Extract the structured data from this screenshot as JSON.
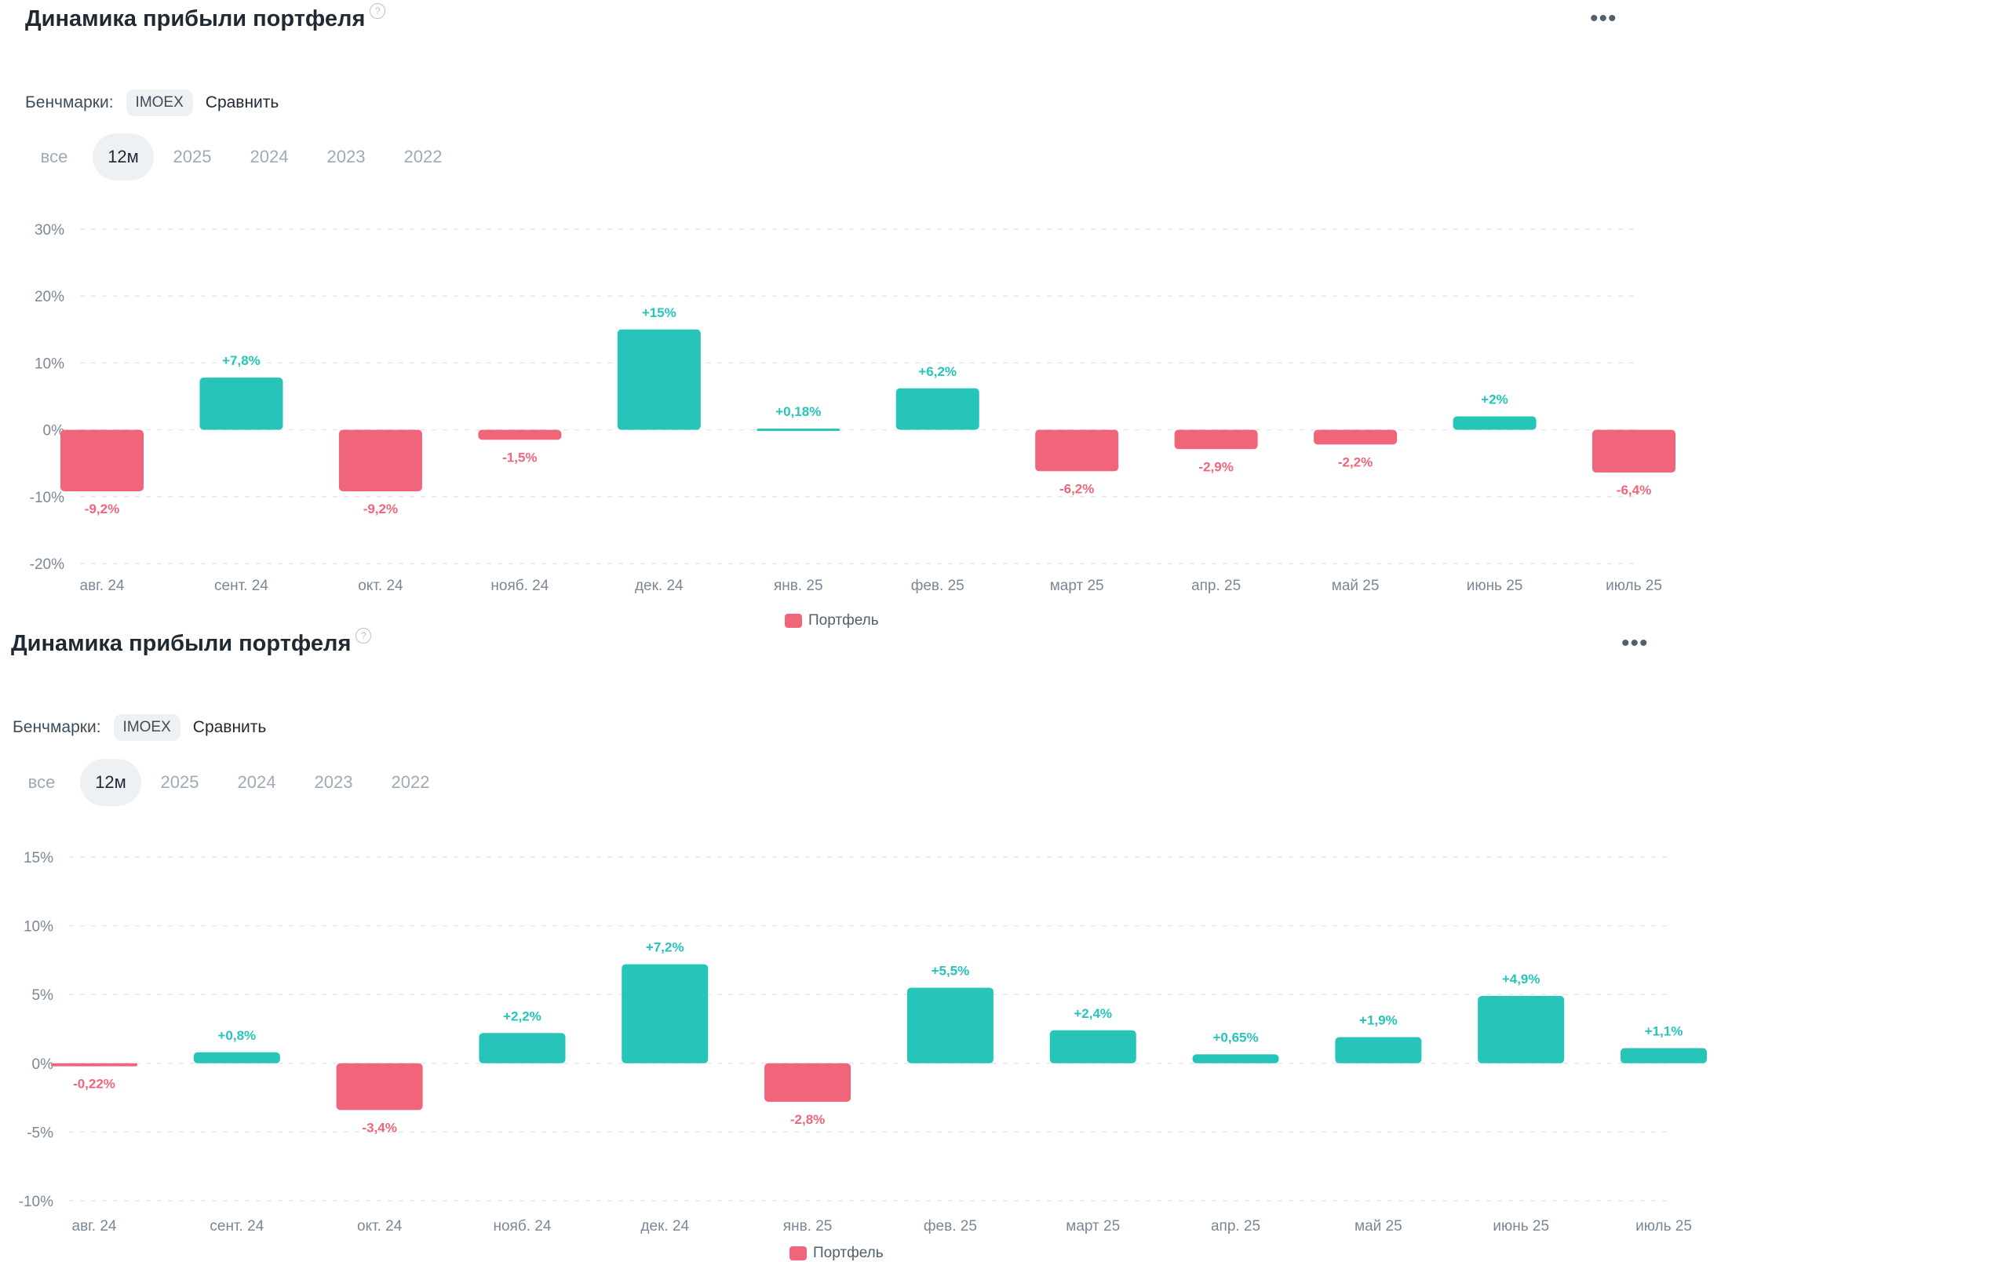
{
  "colors": {
    "positive": "#26c4b9",
    "negative": "#f1657a",
    "grid": "#e4e7eb",
    "axis_text": "#7b8794"
  },
  "panels": [
    {
      "title": "Динамика прибыли портфеля",
      "benchmarks_label": "Бенчмарки:",
      "benchmark_chip": "IMOEX",
      "compare_label": "Сравнить",
      "tabs": [
        "все",
        "12м",
        "2025",
        "2024",
        "2023",
        "2022"
      ],
      "active_tab": "12м",
      "legend_label": "Портфель"
    },
    {
      "title": "Динамика прибыли портфеля",
      "benchmarks_label": "Бенчмарки:",
      "benchmark_chip": "IMOEX",
      "compare_label": "Сравнить",
      "tabs": [
        "все",
        "12м",
        "2025",
        "2024",
        "2023",
        "2022"
      ],
      "active_tab": "12м",
      "legend_label": "Портфель"
    }
  ],
  "chart_data": [
    {
      "type": "bar",
      "categories": [
        "авг. 24",
        "сент. 24",
        "окт. 24",
        "нояб. 24",
        "дек. 24",
        "янв. 25",
        "фев. 25",
        "март 25",
        "апр. 25",
        "май 25",
        "июнь 25",
        "июль 25"
      ],
      "series": [
        {
          "name": "Портфель",
          "values": [
            -9.2,
            7.8,
            -9.2,
            -1.5,
            15,
            0.18,
            6.2,
            -6.2,
            -2.9,
            -2.2,
            2,
            -6.4
          ]
        }
      ],
      "labels": [
        "-9,2%",
        "+7,8%",
        "-9,2%",
        "-1,5%",
        "+15%",
        "+0,18%",
        "+6,2%",
        "-6,2%",
        "-2,9%",
        "-2,2%",
        "+2%",
        "-6,4%"
      ],
      "yticks": [
        30,
        20,
        10,
        0,
        -10,
        -20
      ],
      "ytick_labels": [
        "30%",
        "20%",
        "10%",
        "0%",
        "-10%",
        "-20%"
      ],
      "ylim": [
        -20,
        30
      ],
      "grid": true,
      "legend": "bottom-center"
    },
    {
      "type": "bar",
      "categories": [
        "авг. 24",
        "сент. 24",
        "окт. 24",
        "нояб. 24",
        "дек. 24",
        "янв. 25",
        "фев. 25",
        "март 25",
        "апр. 25",
        "май 25",
        "июнь 25",
        "июль 25"
      ],
      "series": [
        {
          "name": "Портфель",
          "values": [
            -0.22,
            0.8,
            -3.4,
            2.2,
            7.2,
            -2.8,
            5.5,
            2.4,
            0.65,
            1.9,
            4.9,
            1.1
          ]
        }
      ],
      "labels": [
        "-0,22%",
        "+0,8%",
        "-3,4%",
        "+2,2%",
        "+7,2%",
        "-2,8%",
        "+5,5%",
        "+2,4%",
        "+0,65%",
        "+1,9%",
        "+4,9%",
        "+1,1%"
      ],
      "yticks": [
        15,
        10,
        5,
        0,
        -5,
        -10
      ],
      "ytick_labels": [
        "15%",
        "10%",
        "5%",
        "0%",
        "-5%",
        "-10%"
      ],
      "ylim": [
        -10,
        15
      ],
      "grid": true,
      "legend": "bottom-center"
    }
  ]
}
